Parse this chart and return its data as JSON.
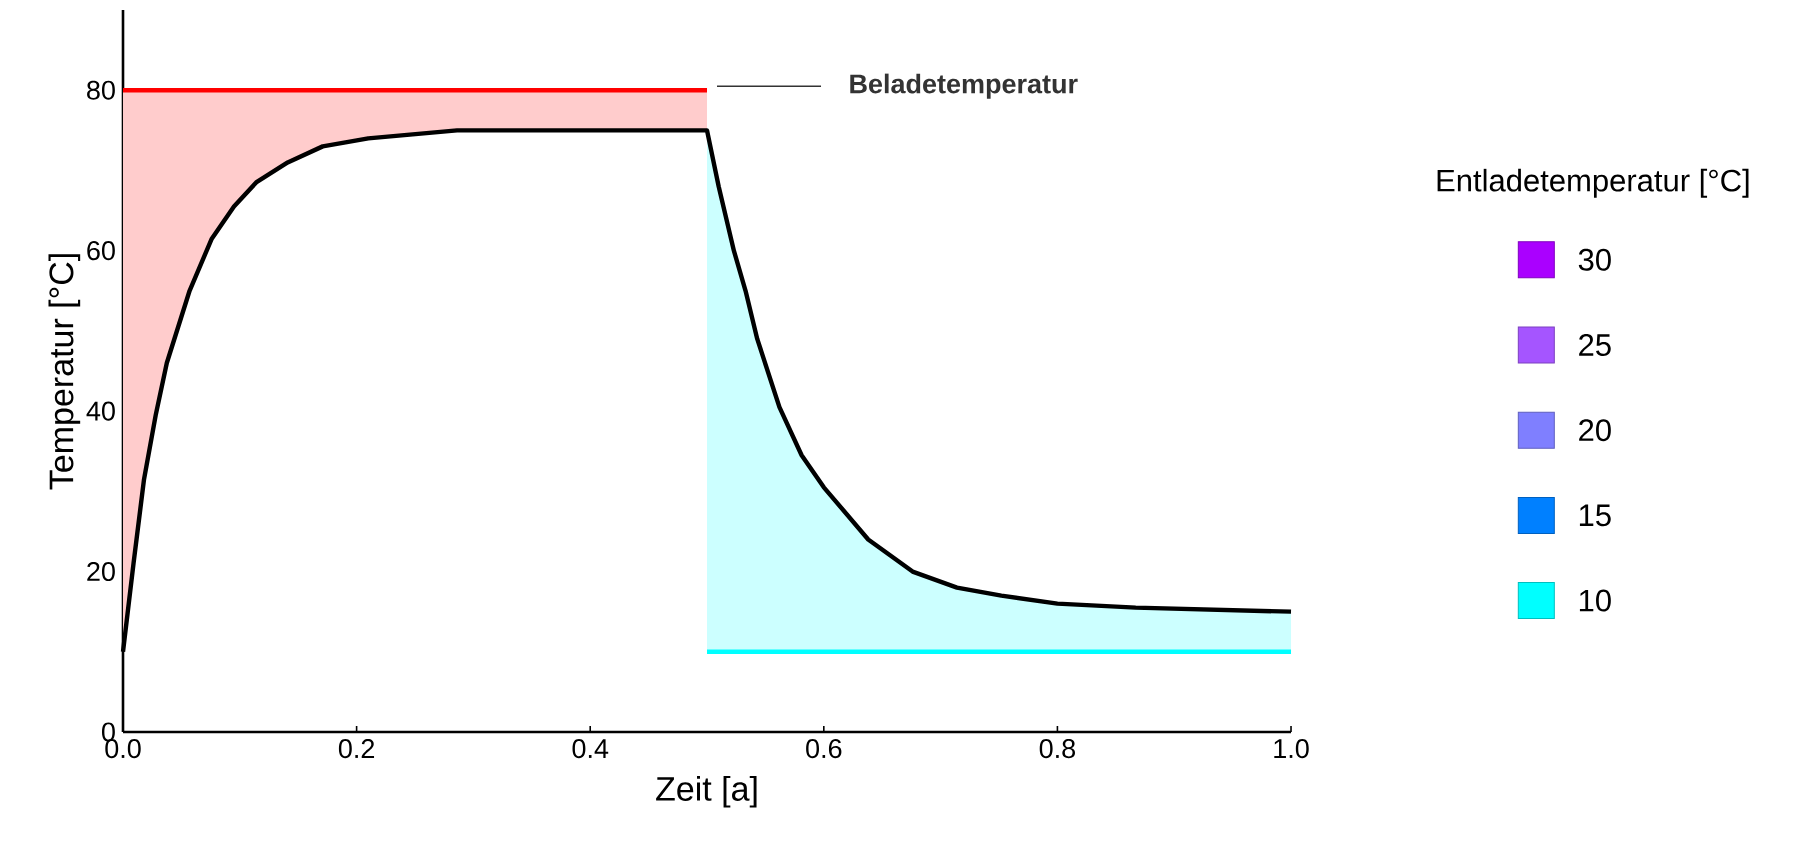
{
  "chart_data": {
    "type": "line",
    "xlabel": "Zeit [a]",
    "ylabel": "Temperatur [°C]",
    "legend_title": "Entladetemperatur [°C]",
    "legend": "right",
    "xlim": [
      0,
      1.0
    ],
    "ylim": [
      0,
      90
    ],
    "xticks": [
      {
        "value": 0,
        "label": "0.0"
      },
      {
        "value": 0.2,
        "label": "0.2"
      },
      {
        "value": 0.4,
        "label": "0.4"
      },
      {
        "value": 0.6,
        "label": "0.6"
      },
      {
        "value": 0.8,
        "label": "0.8"
      },
      {
        "value": 1.0,
        "label": "1.0"
      }
    ],
    "yticks": [
      0,
      20,
      40,
      60,
      80
    ],
    "series": [
      {
        "name": "Beladetemperatur",
        "color": "#ff0000",
        "x": [
          0,
          0.009,
          0.018,
          0.028,
          0.0375,
          0.057,
          0.076,
          0.095,
          0.114,
          0.141,
          0.171,
          0.21,
          0.286,
          0.5
        ],
        "values": [
          80,
          80,
          80,
          80,
          80,
          80,
          80,
          80,
          80,
          80,
          80,
          80,
          80,
          80
        ],
        "lower": [
          10,
          21,
          31.5,
          39.5,
          46,
          55,
          61.5,
          65.5,
          68.5,
          71,
          73,
          74,
          75,
          75
        ],
        "upper": [
          80,
          80,
          80,
          80,
          80,
          80,
          80,
          80,
          80,
          80,
          80,
          80,
          80,
          80
        ]
      },
      {
        "name": "30",
        "color": "#aa00ff",
        "values": [
          null
        ]
      },
      {
        "name": "25",
        "color": "#a555ff",
        "values": [
          null
        ]
      },
      {
        "name": "20",
        "color": "#7f7fff",
        "values": [
          null
        ]
      },
      {
        "name": "15",
        "color": "#0080ff",
        "values": [
          null
        ]
      },
      {
        "name": "10",
        "color": "#00ffff",
        "x": [
          0.5,
          0.51,
          0.523,
          0.533,
          0.543,
          0.562,
          0.581,
          0.6,
          0.638,
          0.657,
          0.676,
          0.714,
          0.752,
          0.8,
          0.867,
          1.0
        ],
        "values": [
          10,
          10,
          10,
          10,
          10,
          10,
          10,
          10,
          10,
          10,
          10,
          10,
          10,
          10,
          10,
          10
        ],
        "lower": [
          10,
          10,
          10,
          10,
          10,
          10,
          10,
          10,
          10,
          10,
          10,
          10,
          10,
          10,
          10,
          10
        ],
        "upper": [
          75,
          68,
          60,
          55,
          49,
          40.5,
          34.5,
          30.5,
          24,
          22,
          20,
          18,
          17,
          16,
          15.5,
          15
        ]
      },
      {
        "color": "#000000",
        "x": [
          0,
          0.009,
          0.018,
          0.028,
          0.0375,
          0.057,
          0.076,
          0.095,
          0.114,
          0.141,
          0.171,
          0.21,
          0.286,
          0.5,
          0.51,
          0.523,
          0.533,
          0.543,
          0.562,
          0.581,
          0.6,
          0.638,
          0.657,
          0.676,
          0.714,
          0.752,
          0.8,
          0.867,
          1.0
        ],
        "values": [
          10,
          21,
          31.5,
          39.5,
          46,
          55,
          61.5,
          65.5,
          68.5,
          71,
          73,
          74,
          75,
          75,
          68,
          60,
          55,
          49,
          40.5,
          34.5,
          30.5,
          24,
          22,
          20,
          18,
          17,
          16,
          15.5,
          15
        ]
      }
    ]
  }
}
